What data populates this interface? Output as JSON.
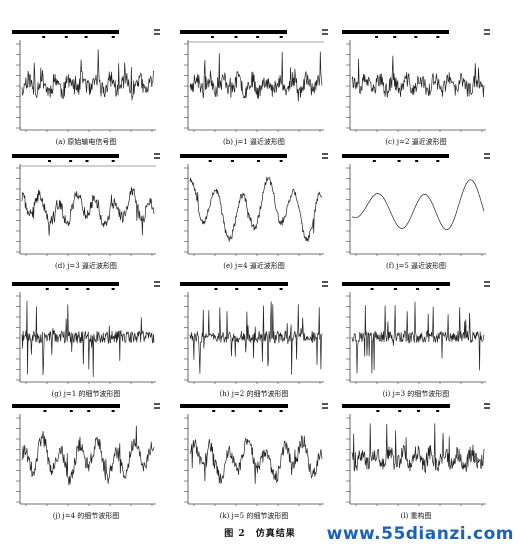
{
  "figure": {
    "title": "图 2　仿真结果",
    "panels": [
      {
        "caption": "(a) 原始输电信号图",
        "kind": "noisy",
        "seed": 11,
        "amp": 0.8
      },
      {
        "caption": "(b) j=1 逼近波形图",
        "kind": "noisy",
        "seed": 23,
        "amp": 0.75
      },
      {
        "caption": "(c) j=2 逼近波形图",
        "kind": "noisy",
        "seed": 37,
        "amp": 0.7
      },
      {
        "caption": "(d) j=3 逼近波形图",
        "kind": "mid",
        "seed": 41,
        "amp": 0.6
      },
      {
        "caption": "(e) j=4 逼近波形图",
        "kind": "smooth",
        "seed": 53,
        "amp": 0.85
      },
      {
        "caption": "(f) j=5 逼近波形图",
        "kind": "wave",
        "seed": 67,
        "amp": 0.7
      },
      {
        "caption": "(g) j=1 的细节波形图",
        "kind": "spiky",
        "seed": 71,
        "amp": 0.9
      },
      {
        "caption": "(h) j=2 的细节波形图",
        "kind": "spiky",
        "seed": 83,
        "amp": 0.85
      },
      {
        "caption": "(i) j=3 的细节波形图",
        "kind": "spiky",
        "seed": 97,
        "amp": 0.85
      },
      {
        "caption": "(j) j=4 的细节波形图",
        "kind": "mid",
        "seed": 101,
        "amp": 0.75
      },
      {
        "caption": "(k) j=5 的细节波形图",
        "kind": "mid",
        "seed": 113,
        "amp": 0.7
      },
      {
        "caption": "(l) 重构图",
        "kind": "noisy",
        "seed": 127,
        "amp": 0.8
      }
    ]
  },
  "watermark": "www.55dianzi.com",
  "colors": {
    "trace": "#222222",
    "frame": "#444444",
    "bar": "#000000"
  }
}
